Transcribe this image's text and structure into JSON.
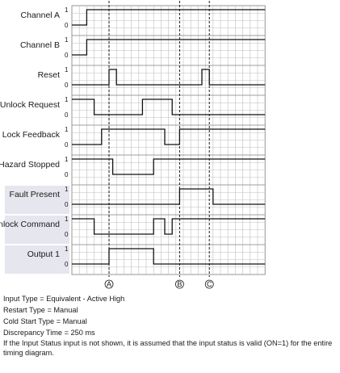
{
  "diagram": {
    "level_high": "1",
    "level_low": "0",
    "signals": [
      {
        "label": "Channel A",
        "shaded": false,
        "initial": 0,
        "transitions": [
          2
        ]
      },
      {
        "label": "Channel B",
        "shaded": false,
        "initial": 0,
        "transitions": [
          2
        ]
      },
      {
        "label": "Reset",
        "shaded": false,
        "initial": 0,
        "transitions": [
          5,
          6,
          17.5,
          18.5
        ]
      },
      {
        "label": "Unlock Request",
        "shaded": false,
        "initial": 1,
        "transitions": [
          3,
          9.5,
          13.5
        ]
      },
      {
        "label": "Lock Feedback",
        "shaded": false,
        "initial": 0,
        "transitions": [
          4,
          12.5,
          14.5
        ]
      },
      {
        "label": "Hazard Stopped",
        "shaded": false,
        "initial": 1,
        "transitions": [
          5.5,
          11
        ]
      },
      {
        "label": "Fault Present",
        "shaded": true,
        "initial": 0,
        "transitions": [
          14.5,
          19
        ]
      },
      {
        "label": "Unlock Command",
        "shaded": true,
        "initial": 1,
        "transitions": [
          3,
          11,
          12.5,
          13.5
        ]
      },
      {
        "label": "Output 1",
        "shaded": true,
        "initial": 0,
        "transitions": [
          5,
          11
        ]
      }
    ],
    "markers": [
      {
        "label": "A",
        "position": 5
      },
      {
        "label": "B",
        "position": 14.5
      },
      {
        "label": "C",
        "position": 18.5
      }
    ]
  },
  "notes": {
    "input_type": "Input Type = Equivalent - Active High",
    "restart_type": "Restart Type = Manual",
    "cold_start_type": "Cold Start Type = Manual",
    "discrepancy_time": "Discrepancy Time = 250 ms",
    "footnote": "If the Input Status input is not shown, it is assumed that the input status is valid (ON=1) for the entire timing diagram."
  }
}
